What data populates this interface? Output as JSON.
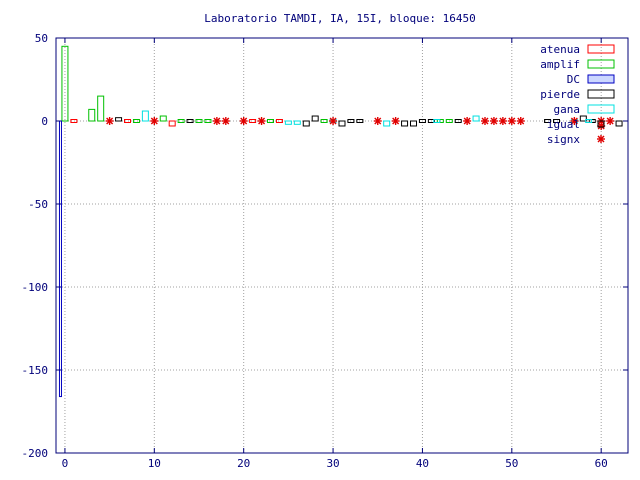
{
  "chart_data": {
    "type": "bar",
    "title": "Laboratorio TAMDI, IA, 15I,  bloque: 16450",
    "xlabel": "",
    "ylabel": "",
    "xlim": [
      -1,
      63
    ],
    "ylim": [
      -200,
      50
    ],
    "xticks": [
      0,
      10,
      20,
      30,
      40,
      50,
      60
    ],
    "yticks": [
      -200,
      -150,
      -100,
      -50,
      0,
      50
    ],
    "xtick_labels": [
      "0",
      "10",
      "20",
      "30",
      "40",
      "50",
      "60"
    ],
    "ytick_labels": [
      "-200",
      "-150",
      "-100",
      "-50",
      "0",
      "50"
    ],
    "grid": true,
    "legend_position": "top-right",
    "series": [
      {
        "name": "atenua",
        "style": "bar",
        "color": "#ff0000",
        "points": [
          [
            1,
            -1
          ],
          [
            7,
            -1
          ],
          [
            12,
            -3
          ],
          [
            21,
            -1
          ],
          [
            24,
            -1
          ]
        ]
      },
      {
        "name": "amplif",
        "style": "bar",
        "color": "#00c000",
        "points": [
          [
            0,
            45
          ],
          [
            3,
            7
          ],
          [
            4,
            15
          ],
          [
            8,
            1
          ],
          [
            11,
            3
          ],
          [
            13,
            1
          ],
          [
            15,
            1
          ],
          [
            16,
            1
          ],
          [
            23,
            1
          ],
          [
            29,
            1
          ],
          [
            42,
            1
          ],
          [
            43,
            1
          ]
        ]
      },
      {
        "name": "DC",
        "style": "bar",
        "color": "#0000c0",
        "points": [
          [
            -0.5,
            -166
          ]
        ]
      },
      {
        "name": "pierde",
        "style": "bar",
        "color": "#000000",
        "points": [
          [
            6,
            2
          ],
          [
            14,
            -1
          ],
          [
            27,
            -3
          ],
          [
            28,
            3
          ],
          [
            31,
            -3
          ],
          [
            32,
            1
          ],
          [
            33,
            -1
          ],
          [
            38,
            -3
          ],
          [
            39,
            -3
          ],
          [
            40,
            -1
          ],
          [
            41,
            -1
          ],
          [
            44,
            1
          ],
          [
            54,
            1
          ],
          [
            55,
            1
          ],
          [
            58,
            3
          ],
          [
            59,
            -1
          ],
          [
            62,
            -3
          ]
        ]
      },
      {
        "name": "gana",
        "style": "bar",
        "color": "#00e0e0",
        "points": [
          [
            9,
            6
          ],
          [
            25,
            -2
          ],
          [
            26,
            -2
          ],
          [
            30,
            1
          ],
          [
            36,
            -3
          ],
          [
            41.6,
            -1
          ],
          [
            46,
            3
          ],
          [
            57,
            -1
          ],
          [
            58.6,
            1
          ]
        ]
      },
      {
        "name": "igual",
        "style": "square",
        "color": "#000000",
        "points": []
      },
      {
        "name": "signx",
        "style": "star",
        "color": "#e00000",
        "points": [
          [
            5,
            0
          ],
          [
            10,
            0
          ],
          [
            17,
            0
          ],
          [
            18,
            0
          ],
          [
            20,
            0
          ],
          [
            22,
            0
          ],
          [
            30,
            0
          ],
          [
            35,
            0
          ],
          [
            37,
            0
          ],
          [
            45,
            0
          ],
          [
            47,
            0
          ],
          [
            48,
            0
          ],
          [
            49,
            0
          ],
          [
            50,
            0
          ],
          [
            51,
            0
          ],
          [
            57,
            0
          ],
          [
            60,
            0
          ],
          [
            60,
            -3
          ],
          [
            61,
            0
          ]
        ]
      }
    ]
  }
}
